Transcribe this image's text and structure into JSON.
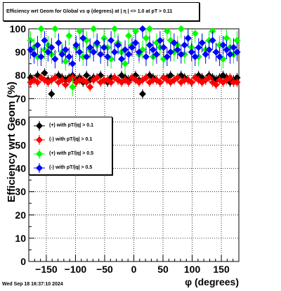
{
  "chart_data": {
    "type": "scatter",
    "title": "Efficiency wrt Geom for Global vs φ (degrees) at |  η | <= 1.0 at pT > 0.11",
    "xlabel": "φ (degrees)",
    "ylabel": "Efficiency wrt Geom (%)",
    "xlim": [
      -180,
      180
    ],
    "ylim": [
      0,
      100
    ],
    "x_ticks": [
      "−150",
      "−100",
      "−50",
      "0",
      "50",
      "100",
      "150"
    ],
    "x_tick_values": [
      -150,
      -100,
      -50,
      0,
      50,
      100,
      150
    ],
    "y_ticks": [
      "0",
      "10",
      "20",
      "30",
      "40",
      "50",
      "60",
      "70",
      "80",
      "90",
      "100"
    ],
    "y_tick_values": [
      0,
      10,
      20,
      30,
      40,
      50,
      60,
      70,
      80,
      90,
      100
    ],
    "grid": true,
    "legend_position": "middle-left",
    "footer": "Wed Sep 18 16:37:10 2024",
    "series": [
      {
        "name": "(+) with pT/|q| > 0.1",
        "color": "#000000",
        "x": [
          -177,
          -171,
          -165,
          -159,
          -153,
          -147,
          -141,
          -135,
          -129,
          -123,
          -117,
          -111,
          -105,
          -99,
          -93,
          -87,
          -81,
          -75,
          -69,
          -63,
          -57,
          -51,
          -45,
          -39,
          -33,
          -27,
          -21,
          -15,
          -9,
          -3,
          3,
          9,
          15,
          21,
          27,
          33,
          39,
          45,
          51,
          57,
          63,
          69,
          75,
          81,
          87,
          93,
          99,
          105,
          111,
          117,
          123,
          129,
          135,
          141,
          147,
          153,
          159,
          165,
          171,
          177
        ],
        "y": [
          79,
          78,
          80,
          79,
          81,
          78,
          72,
          79,
          80,
          79,
          78,
          79,
          80,
          78,
          79,
          77,
          80,
          78,
          79,
          79,
          80,
          78,
          77,
          79,
          79,
          78,
          80,
          79,
          78,
          79,
          80,
          78,
          72,
          79,
          80,
          79,
          78,
          77,
          79,
          79,
          80,
          78,
          79,
          80,
          79,
          78,
          77,
          79,
          80,
          79,
          78,
          80,
          79,
          78,
          79,
          80,
          79,
          77,
          78,
          79
        ]
      },
      {
        "name": "(-) with pT/|q| > 0.1",
        "color": "#ff0000",
        "x": [
          -177,
          -171,
          -165,
          -159,
          -153,
          -147,
          -141,
          -135,
          -129,
          -123,
          -117,
          -111,
          -105,
          -99,
          -93,
          -87,
          -81,
          -75,
          -69,
          -63,
          -57,
          -51,
          -45,
          -39,
          -33,
          -27,
          -21,
          -15,
          -9,
          -3,
          3,
          9,
          15,
          21,
          27,
          33,
          39,
          45,
          51,
          57,
          63,
          69,
          75,
          81,
          87,
          93,
          99,
          105,
          111,
          117,
          123,
          129,
          135,
          141,
          147,
          153,
          159,
          165,
          171,
          177
        ],
        "y": [
          77,
          78,
          77,
          79,
          78,
          77,
          78,
          79,
          77,
          78,
          76,
          78,
          79,
          77,
          78,
          78,
          77,
          75,
          78,
          79,
          77,
          78,
          78,
          77,
          79,
          78,
          77,
          78,
          77,
          79,
          78,
          77,
          78,
          79,
          77,
          78,
          78,
          77,
          79,
          78,
          77,
          78,
          79,
          77,
          78,
          78,
          77,
          79,
          78,
          77,
          78,
          79,
          77,
          76,
          78,
          77,
          78,
          79,
          77,
          77
        ]
      },
      {
        "name": "(+) with pT/|q| > 0.5",
        "color": "#00ff00",
        "x": [
          -177,
          -171,
          -165,
          -159,
          -153,
          -147,
          -141,
          -135,
          -129,
          -123,
          -117,
          -111,
          -105,
          -99,
          -93,
          -87,
          -81,
          -75,
          -69,
          -63,
          -57,
          -51,
          -45,
          -39,
          -33,
          -27,
          -21,
          -15,
          -9,
          -3,
          3,
          9,
          15,
          21,
          27,
          33,
          39,
          45,
          51,
          57,
          63,
          69,
          75,
          81,
          87,
          93,
          99,
          105,
          111,
          117,
          123,
          129,
          135,
          141,
          147,
          153,
          159,
          165,
          171,
          177
        ],
        "y": [
          95,
          92,
          88,
          100,
          91,
          93,
          89,
          100,
          94,
          90,
          86,
          97,
          75,
          92,
          99,
          88,
          95,
          91,
          100,
          93,
          89,
          96,
          92,
          87,
          100,
          94,
          90,
          85,
          97,
          93,
          99,
          89,
          91,
          96,
          100,
          88,
          94,
          92,
          87,
          99,
          95,
          90,
          93,
          100,
          89,
          96,
          92,
          98,
          88,
          94,
          91,
          95,
          99,
          90,
          93,
          87,
          96,
          92,
          89,
          95
        ]
      },
      {
        "name": "(-) with pT/|q| > 0.5",
        "color": "#0000ff",
        "x": [
          -177,
          -171,
          -165,
          -159,
          -153,
          -147,
          -141,
          -135,
          -129,
          -123,
          -117,
          -111,
          -105,
          -99,
          -93,
          -87,
          -81,
          -75,
          -69,
          -63,
          -57,
          -51,
          -45,
          -39,
          -33,
          -27,
          -21,
          -15,
          -9,
          -3,
          3,
          9,
          15,
          21,
          27,
          33,
          39,
          45,
          51,
          57,
          63,
          69,
          75,
          81,
          87,
          93,
          99,
          105,
          111,
          117,
          123,
          129,
          135,
          141,
          147,
          153,
          159,
          165,
          171,
          177
        ],
        "y": [
          91,
          89,
          93,
          88,
          95,
          90,
          92,
          87,
          94,
          89,
          91,
          88,
          85,
          93,
          90,
          96,
          88,
          92,
          90,
          94,
          89,
          92,
          88,
          95,
          90,
          93,
          87,
          91,
          89,
          92,
          94,
          90,
          100,
          88,
          93,
          91,
          89,
          95,
          92,
          88,
          90,
          94,
          91,
          89,
          93,
          96,
          90,
          88,
          92,
          94,
          89,
          91,
          95,
          90,
          88,
          93,
          91,
          89,
          92,
          90
        ]
      }
    ]
  }
}
